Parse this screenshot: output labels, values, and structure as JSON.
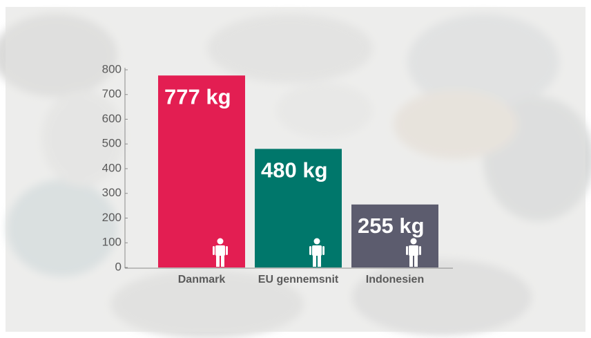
{
  "chart_data": {
    "type": "bar",
    "categories": [
      "Danmark",
      "EU gennemsnit",
      "Indonesien"
    ],
    "values": [
      777,
      480,
      255
    ],
    "value_labels": [
      "777 kg",
      "480 kg",
      "255 kg"
    ],
    "colors": [
      "#e31e52",
      "#00776b",
      "#5c5c6e"
    ],
    "ylim": [
      0,
      800
    ],
    "yticks": [
      0,
      100,
      200,
      300,
      400,
      500,
      600,
      700,
      800
    ],
    "grid": false
  }
}
